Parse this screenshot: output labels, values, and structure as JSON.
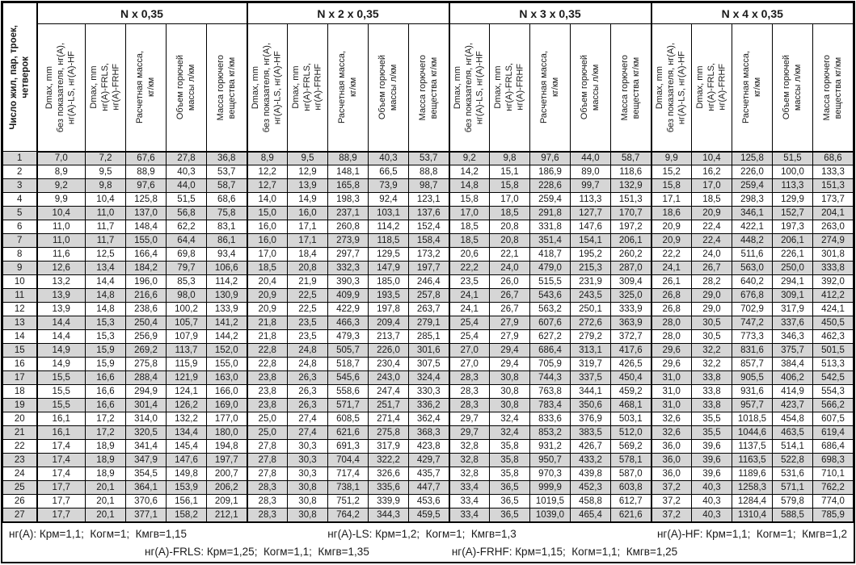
{
  "table": {
    "corner_header": "Число жил, пар, троек,\nчетверок",
    "sub_headers": [
      "Dmax, mm\nбез показателя, нг(А),\nнг(А)-LS, нг(А)-HF",
      "Dmax, mm\nнг(А)-FRLS,\nнг(А)-FRHF",
      "Расчетная масса,\nкг/км",
      "Объем горючей\nмассы л/км",
      "Масса горючего\nвещества кг/км"
    ],
    "row_labels": [
      "1",
      "2",
      "3",
      "4",
      "5",
      "6",
      "7",
      "8",
      "9",
      "10",
      "11",
      "12",
      "13",
      "14",
      "15",
      "16",
      "17",
      "18",
      "19",
      "20",
      "21",
      "22",
      "23",
      "24",
      "25",
      "26",
      "27"
    ],
    "groups": [
      {
        "title": "N x 0,35",
        "rows": [
          [
            "7,0",
            "7,2",
            "67,6",
            "27,8",
            "36,8"
          ],
          [
            "8,9",
            "9,5",
            "88,9",
            "40,3",
            "53,7"
          ],
          [
            "9,2",
            "9,8",
            "97,6",
            "44,0",
            "58,7"
          ],
          [
            "9,9",
            "10,4",
            "125,8",
            "51,5",
            "68,6"
          ],
          [
            "10,4",
            "11,0",
            "137,0",
            "56,8",
            "75,8"
          ],
          [
            "11,0",
            "11,7",
            "148,4",
            "62,2",
            "83,1"
          ],
          [
            "11,0",
            "11,7",
            "155,0",
            "64,4",
            "86,1"
          ],
          [
            "11,6",
            "12,5",
            "166,4",
            "69,8",
            "93,4"
          ],
          [
            "12,6",
            "13,4",
            "184,2",
            "79,7",
            "106,6"
          ],
          [
            "13,2",
            "14,4",
            "196,0",
            "85,3",
            "114,2"
          ],
          [
            "13,9",
            "14,8",
            "216,6",
            "98,0",
            "130,9"
          ],
          [
            "13,9",
            "14,8",
            "238,6",
            "100,2",
            "133,9"
          ],
          [
            "14,4",
            "15,3",
            "250,4",
            "105,7",
            "141,2"
          ],
          [
            "14,4",
            "15,3",
            "256,9",
            "107,9",
            "144,2"
          ],
          [
            "14,9",
            "15,9",
            "269,2",
            "113,7",
            "152,0"
          ],
          [
            "14,9",
            "15,9",
            "275,8",
            "115,9",
            "155,0"
          ],
          [
            "15,5",
            "16,6",
            "288,4",
            "121,9",
            "163,0"
          ],
          [
            "15,5",
            "16,6",
            "294,9",
            "124,1",
            "166,0"
          ],
          [
            "15,5",
            "16,6",
            "301,4",
            "126,2",
            "169,0"
          ],
          [
            "16,1",
            "17,2",
            "314,0",
            "132,2",
            "177,0"
          ],
          [
            "16,1",
            "17,2",
            "320,5",
            "134,4",
            "180,0"
          ],
          [
            "17,4",
            "18,9",
            "341,4",
            "145,4",
            "194,8"
          ],
          [
            "17,4",
            "18,9",
            "347,9",
            "147,6",
            "197,7"
          ],
          [
            "17,4",
            "18,9",
            "354,5",
            "149,8",
            "200,7"
          ],
          [
            "17,7",
            "20,1",
            "364,1",
            "153,9",
            "206,2"
          ],
          [
            "17,7",
            "20,1",
            "370,6",
            "156,1",
            "209,1"
          ],
          [
            "17,7",
            "20,1",
            "377,1",
            "158,2",
            "212,1"
          ]
        ]
      },
      {
        "title": "N x 2 x 0,35",
        "rows": [
          [
            "8,9",
            "9,5",
            "88,9",
            "40,3",
            "53,7"
          ],
          [
            "12,2",
            "12,9",
            "148,1",
            "66,5",
            "88,8"
          ],
          [
            "12,7",
            "13,9",
            "165,8",
            "73,9",
            "98,7"
          ],
          [
            "14,0",
            "14,9",
            "198,3",
            "92,4",
            "123,1"
          ],
          [
            "15,0",
            "16,0",
            "237,1",
            "103,1",
            "137,6"
          ],
          [
            "16,0",
            "17,1",
            "260,8",
            "114,2",
            "152,4"
          ],
          [
            "16,0",
            "17,1",
            "273,9",
            "118,5",
            "158,4"
          ],
          [
            "17,0",
            "18,4",
            "297,7",
            "129,5",
            "173,2"
          ],
          [
            "18,5",
            "20,8",
            "332,3",
            "147,9",
            "197,7"
          ],
          [
            "20,4",
            "21,9",
            "390,3",
            "185,0",
            "246,4"
          ],
          [
            "20,9",
            "22,5",
            "409,9",
            "193,5",
            "257,8"
          ],
          [
            "20,9",
            "22,5",
            "422,9",
            "197,8",
            "263,7"
          ],
          [
            "21,8",
            "23,5",
            "466,3",
            "209,4",
            "279,1"
          ],
          [
            "21,8",
            "23,5",
            "479,3",
            "213,7",
            "285,1"
          ],
          [
            "22,8",
            "24,8",
            "505,7",
            "226,0",
            "301,6"
          ],
          [
            "22,8",
            "24,8",
            "518,7",
            "230,4",
            "307,5"
          ],
          [
            "23,8",
            "26,3",
            "545,6",
            "243,0",
            "324,4"
          ],
          [
            "23,8",
            "26,3",
            "558,6",
            "247,4",
            "330,3"
          ],
          [
            "23,8",
            "26,3",
            "571,7",
            "251,7",
            "336,2"
          ],
          [
            "25,0",
            "27,4",
            "608,5",
            "271,4",
            "362,4"
          ],
          [
            "25,0",
            "27,4",
            "621,6",
            "275,8",
            "368,3"
          ],
          [
            "27,8",
            "30,3",
            "691,3",
            "317,9",
            "423,8"
          ],
          [
            "27,8",
            "30,3",
            "704,4",
            "322,2",
            "429,7"
          ],
          [
            "27,8",
            "30,3",
            "717,4",
            "326,6",
            "435,7"
          ],
          [
            "28,3",
            "30,8",
            "738,1",
            "335,6",
            "447,7"
          ],
          [
            "28,3",
            "30,8",
            "751,2",
            "339,9",
            "453,6"
          ],
          [
            "28,3",
            "30,8",
            "764,2",
            "344,3",
            "459,5"
          ]
        ]
      },
      {
        "title": "N x 3 x 0,35",
        "rows": [
          [
            "9,2",
            "9,8",
            "97,6",
            "44,0",
            "58,7"
          ],
          [
            "14,2",
            "15,1",
            "186,9",
            "89,0",
            "118,6"
          ],
          [
            "14,8",
            "15,8",
            "228,6",
            "99,7",
            "132,9"
          ],
          [
            "15,8",
            "17,0",
            "259,4",
            "113,3",
            "151,3"
          ],
          [
            "17,0",
            "18,5",
            "291,8",
            "127,7",
            "170,7"
          ],
          [
            "18,5",
            "20,8",
            "331,8",
            "147,6",
            "197,2"
          ],
          [
            "18,5",
            "20,8",
            "351,4",
            "154,1",
            "206,1"
          ],
          [
            "20,6",
            "22,1",
            "418,7",
            "195,2",
            "260,2"
          ],
          [
            "22,2",
            "24,0",
            "479,0",
            "215,3",
            "287,0"
          ],
          [
            "23,5",
            "26,0",
            "515,5",
            "231,9",
            "309,4"
          ],
          [
            "24,1",
            "26,7",
            "543,6",
            "243,5",
            "325,0"
          ],
          [
            "24,1",
            "26,7",
            "563,2",
            "250,1",
            "333,9"
          ],
          [
            "25,4",
            "27,9",
            "607,6",
            "272,6",
            "363,9"
          ],
          [
            "25,4",
            "27,9",
            "627,2",
            "279,2",
            "372,7"
          ],
          [
            "27,0",
            "29,4",
            "686,4",
            "313,1",
            "417,6"
          ],
          [
            "27,0",
            "29,4",
            "705,9",
            "319,7",
            "426,5"
          ],
          [
            "28,3",
            "30,8",
            "744,3",
            "337,5",
            "450,4"
          ],
          [
            "28,3",
            "30,8",
            "763,8",
            "344,1",
            "459,2"
          ],
          [
            "28,3",
            "30,8",
            "783,4",
            "350,6",
            "468,1"
          ],
          [
            "29,7",
            "32,4",
            "833,6",
            "376,9",
            "503,1"
          ],
          [
            "29,7",
            "32,4",
            "853,2",
            "383,5",
            "512,0"
          ],
          [
            "32,8",
            "35,8",
            "931,2",
            "426,7",
            "569,2"
          ],
          [
            "32,8",
            "35,8",
            "950,7",
            "433,2",
            "578,1"
          ],
          [
            "32,8",
            "35,8",
            "970,3",
            "439,8",
            "587,0"
          ],
          [
            "33,4",
            "36,5",
            "999,9",
            "452,3",
            "603,8"
          ],
          [
            "33,4",
            "36,5",
            "1019,5",
            "458,8",
            "612,7"
          ],
          [
            "33,4",
            "36,5",
            "1039,0",
            "465,4",
            "621,6"
          ]
        ]
      },
      {
        "title": "N x 4 x 0,35",
        "rows": [
          [
            "9,9",
            "10,4",
            "125,8",
            "51,5",
            "68,6"
          ],
          [
            "15,2",
            "16,2",
            "226,0",
            "100,0",
            "133,3"
          ],
          [
            "15,8",
            "17,0",
            "259,4",
            "113,3",
            "151,3"
          ],
          [
            "17,1",
            "18,5",
            "298,3",
            "129,9",
            "173,7"
          ],
          [
            "18,6",
            "20,9",
            "346,1",
            "152,7",
            "204,1"
          ],
          [
            "20,9",
            "22,4",
            "422,1",
            "197,3",
            "263,0"
          ],
          [
            "20,9",
            "22,4",
            "448,2",
            "206,1",
            "274,9"
          ],
          [
            "22,2",
            "24,0",
            "511,6",
            "226,1",
            "301,8"
          ],
          [
            "24,1",
            "26,7",
            "563,0",
            "250,0",
            "333,8"
          ],
          [
            "26,1",
            "28,2",
            "640,2",
            "294,1",
            "392,0"
          ],
          [
            "26,8",
            "29,0",
            "676,8",
            "309,1",
            "412,2"
          ],
          [
            "26,8",
            "29,0",
            "702,9",
            "317,9",
            "424,1"
          ],
          [
            "28,0",
            "30,5",
            "747,2",
            "337,6",
            "450,5"
          ],
          [
            "28,0",
            "30,5",
            "773,3",
            "346,3",
            "462,3"
          ],
          [
            "29,6",
            "32,2",
            "831,6",
            "375,7",
            "501,5"
          ],
          [
            "29,6",
            "32,2",
            "857,7",
            "384,4",
            "513,3"
          ],
          [
            "31,0",
            "33,8",
            "905,5",
            "406,2",
            "542,5"
          ],
          [
            "31,0",
            "33,8",
            "931,6",
            "414,9",
            "554,3"
          ],
          [
            "31,0",
            "33,8",
            "957,7",
            "423,7",
            "566,2"
          ],
          [
            "32,6",
            "35,5",
            "1018,5",
            "454,8",
            "607,5"
          ],
          [
            "32,6",
            "35,5",
            "1044,6",
            "463,5",
            "619,4"
          ],
          [
            "36,0",
            "39,6",
            "1137,5",
            "514,1",
            "686,4"
          ],
          [
            "36,0",
            "39,6",
            "1163,5",
            "522,8",
            "698,3"
          ],
          [
            "36,0",
            "39,6",
            "1189,6",
            "531,6",
            "710,1"
          ],
          [
            "37,2",
            "40,3",
            "1258,3",
            "571,1",
            "762,2"
          ],
          [
            "37,2",
            "40,3",
            "1284,4",
            "579,8",
            "774,0"
          ],
          [
            "37,2",
            "40,3",
            "1310,4",
            "588,5",
            "785,9"
          ]
        ]
      }
    ]
  },
  "footer": {
    "line1": [
      "нг(А): Крм=1,1;  Когм=1;  Кмгв=1,15",
      "нг(А)-LS: Крм=1,2;  Когм=1;  Кмгв=1,3",
      "нг(А)-HF: Крм=1,1;  Когм=1;  Кмгв=1,2"
    ],
    "line2": [
      "нг(А)-FRLS: Крм=1,25;  Когм=1,1;  Кмгв=1,35",
      "нг(А)-FRHF: Крм=1,15;  Когм=1,1;  Кмгв=1,25"
    ]
  },
  "colors": {
    "stripe": "#d6d6d6",
    "border": "#000000"
  }
}
